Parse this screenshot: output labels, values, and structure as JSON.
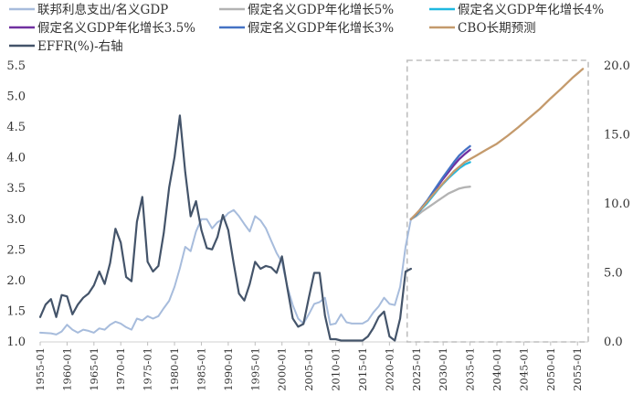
{
  "chart_data": {
    "type": "line",
    "title": "",
    "xlabel": "",
    "ylabel": "",
    "ylim_left": [
      1.0,
      5.5
    ],
    "ylim_right": [
      0.0,
      20.0
    ],
    "yticks_left": [
      "1.0",
      "1.5",
      "2.0",
      "2.5",
      "3.0",
      "3.5",
      "4.0",
      "4.5",
      "5.0",
      "5.5"
    ],
    "yticks_right": [
      "0.0",
      "5.0",
      "10.0",
      "15.0",
      "20.0"
    ],
    "xlim": [
      1955,
      2057
    ],
    "xtick_labels": [
      "1955-01",
      "1960-01",
      "1965-01",
      "1970-01",
      "1975-01",
      "1980-01",
      "1985-01",
      "1990-01",
      "1995-01",
      "2000-01",
      "2005-01",
      "2010-01",
      "2015-01",
      "2020-01",
      "2025-01",
      "2030-01",
      "2035-01",
      "2040-01",
      "2045-01",
      "2050-01",
      "2055-01"
    ],
    "highlight_box": {
      "x_from": 2023.3,
      "x_to": 2057
    },
    "series": [
      {
        "name": "联邦利息支出/名义GDP",
        "color": "#a7bcdc",
        "axis": "left",
        "x": [
          1955,
          1957,
          1958,
          1959,
          1960,
          1961,
          1962,
          1963,
          1964,
          1965,
          1966,
          1967,
          1968,
          1969,
          1970,
          1971,
          1972,
          1973,
          1974,
          1975,
          1976,
          1977,
          1978,
          1979,
          1980,
          1981,
          1982,
          1983,
          1984,
          1985,
          1986,
          1987,
          1988,
          1989,
          1990,
          1991,
          1992,
          1993,
          1994,
          1995,
          1996,
          1997,
          1998,
          1999,
          2000,
          2001,
          2002,
          2003,
          2004,
          2005,
          2006,
          2007,
          2008,
          2009,
          2010,
          2011,
          2012,
          2013,
          2014,
          2015,
          2016,
          2017,
          2018,
          2019,
          2020,
          2021,
          2022,
          2023,
          2024
        ],
        "y": [
          1.15,
          1.14,
          1.12,
          1.17,
          1.28,
          1.2,
          1.15,
          1.2,
          1.18,
          1.15,
          1.22,
          1.2,
          1.28,
          1.33,
          1.3,
          1.24,
          1.2,
          1.38,
          1.35,
          1.42,
          1.38,
          1.42,
          1.55,
          1.67,
          1.9,
          2.2,
          2.55,
          2.48,
          2.8,
          3.0,
          3.0,
          2.85,
          2.95,
          3.0,
          3.1,
          3.15,
          3.05,
          2.92,
          2.8,
          3.05,
          2.98,
          2.85,
          2.65,
          2.45,
          2.3,
          1.9,
          1.6,
          1.38,
          1.3,
          1.45,
          1.62,
          1.65,
          1.72,
          1.28,
          1.3,
          1.45,
          1.32,
          1.3,
          1.3,
          1.3,
          1.35,
          1.48,
          1.58,
          1.72,
          1.62,
          1.6,
          1.9,
          2.55,
          3.0
        ]
      },
      {
        "name": "假定名义GDP年化增长5%",
        "color": "#b3b3b3",
        "axis": "left",
        "x": [
          2024,
          2025,
          2026,
          2027,
          2028,
          2029,
          2030,
          2031,
          2032,
          2033,
          2034,
          2035
        ],
        "y": [
          3.0,
          3.05,
          3.12,
          3.18,
          3.24,
          3.3,
          3.36,
          3.42,
          3.46,
          3.5,
          3.52,
          3.53
        ]
      },
      {
        "name": "假定名义GDP年化增长4%",
        "color": "#1fb8e0",
        "axis": "left",
        "x": [
          2024,
          2025,
          2026,
          2027,
          2028,
          2029,
          2030,
          2031,
          2032,
          2033,
          2034,
          2035
        ],
        "y": [
          3.0,
          3.07,
          3.17,
          3.26,
          3.37,
          3.48,
          3.58,
          3.67,
          3.75,
          3.83,
          3.89,
          3.93
        ]
      },
      {
        "name": "假定名义GDP年化增长3.5%",
        "color": "#7030a0",
        "axis": "left",
        "x": [
          2024,
          2025,
          2026,
          2027,
          2028,
          2029,
          2030,
          2031,
          2032,
          2033,
          2034,
          2035
        ],
        "y": [
          3.0,
          3.08,
          3.18,
          3.29,
          3.41,
          3.54,
          3.66,
          3.77,
          3.88,
          3.98,
          4.06,
          4.13
        ]
      },
      {
        "name": "假定名义GDP年化增长3%",
        "color": "#4472c4",
        "axis": "left",
        "x": [
          2024,
          2025,
          2026,
          2027,
          2028,
          2029,
          2030,
          2031,
          2032,
          2033,
          2034,
          2035
        ],
        "y": [
          3.0,
          3.08,
          3.19,
          3.3,
          3.43,
          3.56,
          3.69,
          3.81,
          3.93,
          4.04,
          4.12,
          4.19
        ]
      },
      {
        "name": "CBO长期预测",
        "color": "#c49a6c",
        "axis": "left",
        "x": [
          2024,
          2026,
          2028,
          2030,
          2032,
          2034,
          2036,
          2038,
          2040,
          2042,
          2044,
          2046,
          2048,
          2050,
          2052,
          2054,
          2056
        ],
        "y": [
          3.0,
          3.18,
          3.39,
          3.59,
          3.78,
          3.93,
          4.03,
          4.13,
          4.23,
          4.36,
          4.5,
          4.65,
          4.8,
          4.97,
          5.13,
          5.3,
          5.45
        ]
      },
      {
        "name": "EFFR(%)-右轴",
        "color": "#44546a",
        "axis": "right",
        "x": [
          1955,
          1956,
          1957,
          1958,
          1959,
          1960,
          1961,
          1962,
          1963,
          1964,
          1965,
          1966,
          1967,
          1968,
          1969,
          1970,
          1971,
          1972,
          1973,
          1974,
          1975,
          1976,
          1977,
          1978,
          1979,
          1980,
          1981,
          1982,
          1983,
          1984,
          1985,
          1986,
          1987,
          1988,
          1989,
          1990,
          1991,
          1992,
          1993,
          1994,
          1995,
          1996,
          1997,
          1998,
          1999,
          2000,
          2001,
          2002,
          2003,
          2004,
          2005,
          2006,
          2007,
          2008,
          2009,
          2010,
          2011,
          2012,
          2013,
          2014,
          2015,
          2016,
          2017,
          2018,
          2019,
          2020,
          2021,
          2022,
          2023,
          2024
        ],
        "y": [
          1.8,
          2.7,
          3.1,
          1.8,
          3.4,
          3.3,
          2.0,
          2.7,
          3.2,
          3.5,
          4.1,
          5.1,
          4.2,
          5.7,
          8.2,
          7.2,
          4.7,
          4.4,
          8.7,
          10.5,
          5.8,
          5.1,
          5.5,
          7.9,
          11.2,
          13.4,
          16.4,
          12.3,
          9.1,
          10.2,
          8.1,
          6.8,
          6.7,
          7.6,
          9.2,
          8.1,
          5.7,
          3.5,
          3.0,
          4.2,
          5.8,
          5.3,
          5.5,
          5.4,
          5.0,
          6.2,
          3.9,
          1.7,
          1.1,
          1.3,
          3.2,
          5.0,
          5.0,
          1.9,
          0.2,
          0.2,
          0.1,
          0.1,
          0.1,
          0.1,
          0.1,
          0.4,
          1.0,
          1.8,
          2.2,
          0.4,
          0.1,
          1.7,
          5.1,
          5.3
        ]
      }
    ]
  }
}
